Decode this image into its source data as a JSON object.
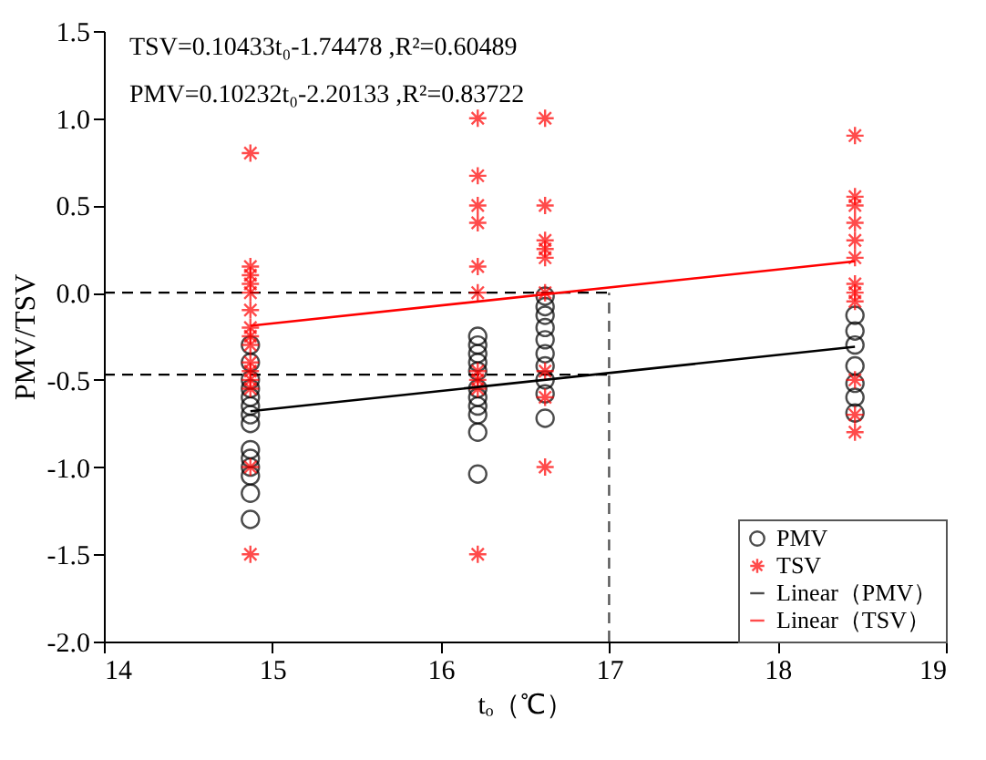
{
  "chart_data": {
    "type": "scatter",
    "xlabel": "tₒ（℃）",
    "ylabel": "PMV/TSV",
    "annotations": [
      "TSV=0.10433t₀-1.74478 ,R²=0.60489",
      "PMV=0.10232t₀-2.20133 ,R²=0.83722"
    ],
    "xlim": [
      14,
      19
    ],
    "xticks": [
      14,
      15,
      16,
      17,
      18,
      19
    ],
    "ylim": [
      -2.0,
      1.5
    ],
    "yticks": [
      {
        "value": -2,
        "label": "-2.0"
      },
      {
        "value": -1.5,
        "label": "-1.5"
      },
      {
        "value": -1,
        "label": "-1.0"
      },
      {
        "value": -0.5,
        "label": "-0.5"
      },
      {
        "value": 0,
        "label": "0.0"
      },
      {
        "value": 0.5,
        "label": "0.5"
      },
      {
        "value": 1,
        "label": "1.0"
      },
      {
        "value": 1.5,
        "label": "1.5"
      }
    ],
    "grid": false,
    "legend": "bottom right",
    "series": [
      {
        "name": "PMV",
        "marker": "circle",
        "color": "#000000",
        "x": [
          14.87,
          14.87,
          14.87,
          14.87,
          14.87,
          14.87,
          14.87,
          14.87,
          14.87,
          14.87,
          14.87,
          14.87,
          14.87,
          14.87,
          16.22,
          16.22,
          16.22,
          16.22,
          16.22,
          16.22,
          16.22,
          16.22,
          16.22,
          16.22,
          16.22,
          16.62,
          16.62,
          16.62,
          16.62,
          16.62,
          16.62,
          16.62,
          16.62,
          16.62,
          16.62,
          18.46,
          18.46,
          18.46,
          18.46,
          18.46,
          18.46,
          18.46
        ],
        "values": [
          -0.3,
          -0.4,
          -0.5,
          -0.55,
          -0.6,
          -0.65,
          -0.7,
          -0.75,
          -0.9,
          -0.95,
          -1.0,
          -1.05,
          -1.15,
          -1.3,
          -0.25,
          -0.3,
          -0.35,
          -0.4,
          -0.45,
          -0.55,
          -0.6,
          -0.65,
          -0.7,
          -0.8,
          -1.04,
          -0.02,
          -0.08,
          -0.13,
          -0.2,
          -0.27,
          -0.35,
          -0.42,
          -0.5,
          -0.58,
          -0.72,
          -0.13,
          -0.22,
          -0.3,
          -0.42,
          -0.52,
          -0.6,
          -0.69
        ]
      },
      {
        "name": "TSV",
        "marker": "cross",
        "color": "#ff0000",
        "x": [
          14.87,
          14.87,
          14.87,
          14.87,
          14.87,
          14.87,
          14.87,
          14.87,
          14.87,
          14.87,
          14.87,
          14.87,
          14.87,
          14.87,
          14.87,
          16.22,
          16.22,
          16.22,
          16.22,
          16.22,
          16.22,
          16.22,
          16.22,
          16.22,
          16.22,
          16.62,
          16.62,
          16.62,
          16.62,
          16.62,
          16.62,
          16.62,
          16.62,
          16.62,
          18.46,
          18.46,
          18.46,
          18.46,
          18.46,
          18.46,
          18.46,
          18.46,
          18.46,
          18.46,
          18.46,
          18.46
        ],
        "values": [
          0.8,
          0.15,
          0.1,
          0.05,
          0.0,
          -0.1,
          -0.2,
          -0.25,
          -0.3,
          -0.4,
          -0.45,
          -0.5,
          -0.55,
          -1.0,
          -1.5,
          1.0,
          0.67,
          0.5,
          0.4,
          0.15,
          0.0,
          -0.45,
          -0.5,
          -0.55,
          -1.5,
          1.0,
          0.5,
          0.3,
          0.25,
          0.2,
          0.0,
          -0.45,
          -0.6,
          -1.0,
          0.9,
          0.55,
          0.5,
          0.4,
          0.3,
          0.2,
          0.05,
          0.0,
          -0.05,
          -0.5,
          -0.7,
          -0.8
        ]
      },
      {
        "name": "Linear（PMV）",
        "type": "line",
        "marker": "none",
        "line_style": "solid",
        "color": "#000000",
        "x": [
          14.87,
          18.46
        ],
        "values": [
          -0.68,
          -0.31
        ]
      },
      {
        "name": "Linear（TSV）",
        "type": "line",
        "marker": "none",
        "line_style": "solid",
        "color": "#ff0000",
        "x": [
          14.87,
          18.46
        ],
        "values": [
          -0.19,
          0.18
        ]
      }
    ],
    "ref_lines": [
      {
        "axis": "y",
        "value": 0,
        "color": "#000000",
        "line_style": "dashed"
      },
      {
        "axis": "y",
        "value": -0.47,
        "color": "#000000",
        "line_style": "dashed"
      },
      {
        "axis": "x",
        "value": 17,
        "color": "#555555",
        "line_style": "dashed"
      }
    ]
  }
}
